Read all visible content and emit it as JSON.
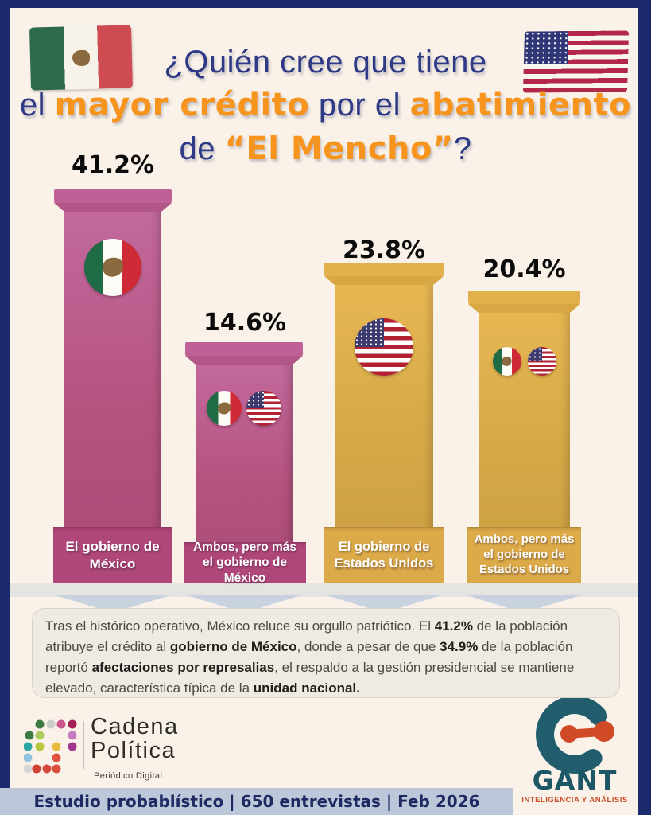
{
  "title": {
    "full_text": "¿Quién cree que tiene el mayor crédito por el abatimiento de “El Mencho”?",
    "line1": [
      {
        "t": "¿Quién cree que tiene",
        "s": "n"
      }
    ],
    "line2": [
      {
        "t": "el ",
        "s": "n"
      },
      {
        "t": "mayor crédito",
        "s": "o"
      },
      {
        "t": " por el ",
        "s": "n"
      },
      {
        "t": "abatimiento",
        "s": "o"
      }
    ],
    "line3": [
      {
        "t": "de ",
        "s": "n"
      },
      {
        "t": "“El Mencho”",
        "s": "o"
      },
      {
        "t": "?",
        "s": "n"
      }
    ]
  },
  "chart_data": {
    "type": "bar",
    "title": "¿Quién cree que tiene el mayor crédito por el abatimiento de “El Mencho”?",
    "unit": "%",
    "categories": [
      "El gobierno de México",
      "Ambos, pero más el gobierno de México",
      "El gobierno de Estados Unidos",
      "Ambos, pero más el gobierno de Estados Unidos"
    ],
    "values": [
      41.2,
      14.6,
      23.8,
      20.4
    ],
    "bars": [
      {
        "label": "El gobierno de México",
        "value": 41.2,
        "value_label": "41.2%",
        "color": "#b0477b",
        "flags": [
          "mexico"
        ]
      },
      {
        "label": "Ambos, pero más el gobierno de México",
        "value": 14.6,
        "value_label": "14.6%",
        "color": "#b0477b",
        "flags": [
          "mexico",
          "usa"
        ]
      },
      {
        "label": "El gobierno de Estados Unidos",
        "value": 23.8,
        "value_label": "23.8%",
        "color": "#dcaa48",
        "flags": [
          "usa"
        ]
      },
      {
        "label": "Ambos, pero más el gobierno de Estados Unidos",
        "value": 20.4,
        "value_label": "20.4%",
        "color": "#dcaa48",
        "flags": [
          "mexico",
          "usa"
        ]
      }
    ],
    "legend": "none",
    "grid": false,
    "ylim": [
      0,
      50
    ]
  },
  "summary": {
    "segments": [
      {
        "t": "Tras el histórico operativo, México reluce su orgullo patriótico. El ",
        "s": "r"
      },
      {
        "t": "41.2%",
        "s": "b"
      },
      {
        "t": " de la población atribuye el crédito al ",
        "s": "r"
      },
      {
        "t": "gobierno de México",
        "s": "b"
      },
      {
        "t": ", donde a pesar de que ",
        "s": "r"
      },
      {
        "t": "34.9%",
        "s": "b"
      },
      {
        "t": " de la población reportó ",
        "s": "r"
      },
      {
        "t": "afectaciones por represalias",
        "s": "b"
      },
      {
        "t": ", el respaldo a la gestión presidencial se mantiene elevado, característica típica de la ",
        "s": "r"
      },
      {
        "t": "unidad nacional.",
        "s": "b"
      }
    ]
  },
  "footer": {
    "cadena": {
      "name_line1": "Cadena",
      "name_line2": "Política",
      "tagline": "Periódico Digital"
    },
    "gant": {
      "name": "GANT",
      "tagline": "INTELIGENCIA Y ANÁLISIS"
    },
    "study_line": "Estudio probablístico | 650 entrevistas | Feb 2026"
  },
  "colors": {
    "frame_navy": "#1b2a6c",
    "background_cream": "#faf2e8",
    "title_navy": "#2e3a85",
    "accent_orange": "#f7941e",
    "bar_pink": "#b0477b",
    "bar_gold": "#dcaa48",
    "band_gray": "#e6e4e0",
    "notch_bluegray": "#c9d2df",
    "bottom_bar": "#bdc7da",
    "gant_teal": "#1d5766",
    "gant_orange": "#c94e28"
  },
  "icons": {
    "mexico_flag": "mexico-flag-icon",
    "usa_flag": "usa-flag-icon",
    "cadena_dots": "cadena-dots-icon",
    "gant_mark": "gant-mark-icon"
  }
}
